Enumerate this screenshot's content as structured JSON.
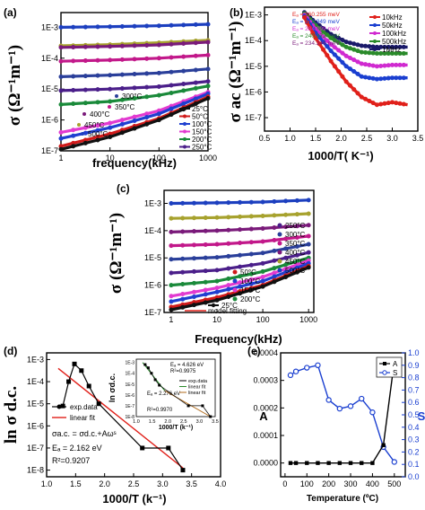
{
  "chart_data": [
    {
      "id": "a",
      "panel_label": "(a)",
      "type": "line",
      "xlabel": "frequency(kHz)",
      "ylabel": "σ (Ω⁻¹m⁻¹)",
      "xscale": "log",
      "yscale": "log",
      "xlim": [
        1,
        1000
      ],
      "ylim": [
        1e-07,
        0.003
      ],
      "xticks": [
        "1",
        "10",
        "100",
        "1000"
      ],
      "yticks": [
        "1E-7",
        "1E-6",
        "1E-5",
        "1E-4",
        "1E-3"
      ],
      "series": [
        {
          "name": "500°C",
          "color": "#1c3fbf",
          "values_log": [
            -3.0,
            -2.98,
            -2.95,
            -2.9
          ]
        },
        {
          "name": "450°C",
          "color": "#a7a22e",
          "values_log": [
            -3.6,
            -3.56,
            -3.5,
            -3.42
          ]
        },
        {
          "name": "400°C",
          "color": "#7a1a7a",
          "values_log": [
            -3.65,
            -3.62,
            -3.57,
            -3.48
          ]
        },
        {
          "name": "350°C",
          "color": "#c2188a",
          "values_log": [
            -4.1,
            -4.06,
            -4.0,
            -3.9
          ]
        },
        {
          "name": "300°C",
          "color": "#2a3f9a",
          "values_log": [
            -4.6,
            -4.55,
            -4.48,
            -4.35
          ]
        },
        {
          "name": "250°C",
          "color": "#4b1f8a",
          "values_log": [
            -5.05,
            -5.0,
            -4.92,
            -4.75
          ]
        },
        {
          "name": "200°C",
          "color": "#1a8a3a",
          "values_log": [
            -5.5,
            -5.4,
            -5.2,
            -4.9
          ]
        },
        {
          "name": "150°C",
          "color": "#e23ad0",
          "values_log": [
            -6.4,
            -6.1,
            -5.7,
            -5.1
          ]
        },
        {
          "name": "100°C",
          "color": "#1f3fd0",
          "values_log": [
            -6.6,
            -6.25,
            -5.8,
            -5.15
          ]
        },
        {
          "name": "50°C",
          "color": "#d01a1a",
          "values_log": [
            -6.85,
            -6.45,
            -5.95,
            -5.25
          ]
        },
        {
          "name": "25°C",
          "color": "#111111",
          "values_log": [
            -6.95,
            -6.55,
            -6.0,
            -5.3
          ]
        }
      ],
      "legend": [
        "25°C",
        "50°C",
        "100°C",
        "150°C",
        "200°C",
        "250°C"
      ],
      "inline_labels": [
        "300°C",
        "350°C",
        "400°C",
        "450°C",
        "500°C"
      ]
    },
    {
      "id": "b",
      "panel_label": "(b)",
      "type": "line",
      "xlabel": "1000/T( K⁻¹)",
      "ylabel": "σ ac (Ω⁻¹m⁻¹)",
      "yscale": "log",
      "xlim": [
        0.5,
        3.5
      ],
      "ylim": [
        3e-08,
        0.002
      ],
      "xticks": [
        "0.5",
        "1.0",
        "1.5",
        "2.0",
        "2.5",
        "3.0",
        "3.5"
      ],
      "yticks": [
        "1E-7",
        "1E-6",
        "1E-5",
        "1E-4",
        "1E-3"
      ],
      "activation": [
        {
          "text": "Eₐ = 360.255 meV",
          "color": "#e0201a"
        },
        {
          "text": "Eₐ = 312.949 meV",
          "color": "#1a3fd0"
        },
        {
          "text": "Eₐ = 284.099 meV",
          "color": "#d02ad0"
        },
        {
          "text": "Eₐ = 240.372 meV",
          "color": "#2a8a2a"
        },
        {
          "text": "Eₐ = 234.246 meV",
          "color": "#7a1a7a"
        }
      ],
      "series": [
        {
          "name": "10kHz",
          "color": "#e0201a",
          "x": [
            1.28,
            1.5,
            1.8,
            2.1,
            2.4,
            2.7,
            3.0,
            3.3
          ],
          "y_log": [
            -3.1,
            -3.9,
            -4.8,
            -5.6,
            -6.2,
            -6.5,
            -6.4,
            -6.5
          ]
        },
        {
          "name": "50kHz",
          "color": "#1a3fd0",
          "x": [
            1.28,
            1.5,
            1.8,
            2.1,
            2.4,
            2.7,
            3.0,
            3.3
          ],
          "y_log": [
            -3.05,
            -3.7,
            -4.4,
            -5.0,
            -5.4,
            -5.5,
            -5.45,
            -5.45
          ]
        },
        {
          "name": "100kHz",
          "color": "#d02ad0",
          "x": [
            1.28,
            1.5,
            1.8,
            2.1,
            2.4,
            2.7,
            3.0,
            3.3
          ],
          "y_log": [
            -3.0,
            -3.55,
            -4.15,
            -4.6,
            -4.9,
            -5.0,
            -4.95,
            -4.95
          ]
        },
        {
          "name": "500kHz",
          "color": "#2a8a2a",
          "x": [
            1.28,
            1.5,
            1.8,
            2.1,
            2.4,
            2.7,
            3.0,
            3.3
          ],
          "y_log": [
            -2.95,
            -3.4,
            -3.9,
            -4.25,
            -4.45,
            -4.5,
            -4.5,
            -4.5
          ]
        },
        {
          "name": "1MHz",
          "color": "#1a1a6a",
          "x": [
            1.28,
            1.5,
            1.8,
            2.1,
            2.4,
            2.7,
            3.0,
            3.3
          ],
          "y_log": [
            -2.9,
            -3.3,
            -3.75,
            -4.05,
            -4.2,
            -4.25,
            -4.25,
            -4.25
          ]
        }
      ]
    },
    {
      "id": "c",
      "panel_label": "(c)",
      "type": "line",
      "xlabel": "Frequency(kHz)",
      "ylabel": "σ (Ω⁻¹m⁻¹)",
      "xscale": "log",
      "yscale": "log",
      "xlim": [
        0.7,
        1300
      ],
      "ylim": [
        1e-07,
        0.003
      ],
      "xticks": [
        "1",
        "10",
        "100",
        "1000"
      ],
      "yticks": [
        "1E-7",
        "1E-6",
        "1E-5",
        "1E-4",
        "1E-3"
      ],
      "series": [
        {
          "name": "500°C",
          "color": "#1c3fbf",
          "values_log": [
            -3.0,
            -2.98,
            -2.95,
            -2.88
          ]
        },
        {
          "name": "450°C",
          "color": "#a7a22e",
          "values_log": [
            -3.55,
            -3.52,
            -3.46,
            -3.38
          ]
        },
        {
          "name": "400°C",
          "color": "#7a1a7a",
          "values_log": [
            -4.05,
            -4.0,
            -3.92,
            -3.8
          ]
        },
        {
          "name": "350°C",
          "color": "#c2188a",
          "values_log": [
            -4.55,
            -4.5,
            -4.4,
            -4.2
          ]
        },
        {
          "name": "300°C",
          "color": "#2a3f9a",
          "values_log": [
            -5.05,
            -4.98,
            -4.82,
            -4.5
          ]
        },
        {
          "name": "250°C",
          "color": "#4b1f8a",
          "values_log": [
            -5.55,
            -5.45,
            -5.2,
            -4.8
          ]
        },
        {
          "name": "200°C",
          "color": "#1a8a3a",
          "values_log": [
            -6.0,
            -5.85,
            -5.5,
            -5.0
          ]
        },
        {
          "name": "150°C",
          "color": "#e23ad0",
          "values_log": [
            -6.4,
            -6.1,
            -5.7,
            -5.1
          ]
        },
        {
          "name": "100°C",
          "color": "#1f3fd0",
          "values_log": [
            -6.6,
            -6.25,
            -5.85,
            -5.2
          ]
        },
        {
          "name": "50°C",
          "color": "#d01a1a",
          "values_log": [
            -6.8,
            -6.45,
            -6.0,
            -5.3
          ]
        },
        {
          "name": "25°C",
          "color": "#111111",
          "values_log": [
            -6.9,
            -6.55,
            -6.05,
            -5.35
          ]
        }
      ],
      "legend_right": [
        "250°C",
        "300°C",
        "350°C",
        "400°C",
        "450°C",
        "500°C"
      ],
      "legend_mid": [
        "50°C",
        "100°C",
        "150°C",
        "200°C"
      ],
      "legend_bottom": [
        "25°C",
        "model fitting"
      ]
    },
    {
      "id": "d",
      "panel_label": "(d)",
      "type": "line",
      "xlabel": "1000/T (k⁻¹)",
      "ylabel": "ln σ d.c.",
      "yscale": "log",
      "xlim": [
        1.0,
        4.0
      ],
      "ylim": [
        5e-09,
        0.002
      ],
      "xticks": [
        "1.0",
        "1.5",
        "2.0",
        "2.5",
        "3.0",
        "3.5",
        "4.0"
      ],
      "yticks": [
        "1E-8",
        "1E-7",
        "1E-6",
        "1E-5",
        "1E-4",
        "1E-3"
      ],
      "series": [
        {
          "name": "exp.data",
          "color": "#000000",
          "x": [
            1.28,
            1.38,
            1.48,
            1.6,
            1.73,
            1.9,
            2.65,
            3.1,
            3.35
          ],
          "y_log": [
            -5.1,
            -4.0,
            -3.2,
            -3.5,
            -4.2,
            -5.0,
            -7.0,
            -7.0,
            -8.0
          ]
        },
        {
          "name": "linear fit",
          "color": "#e0201a",
          "x": [
            1.2,
            3.35
          ],
          "y_log": [
            -3.4,
            -7.9
          ]
        }
      ],
      "legend": [
        "exp.data",
        "linear fit"
      ],
      "equation": "σa.c. = σd.c.+Aωˢ",
      "ea": "Eₐ = 2.162 eV",
      "r2": "R²=0.9207",
      "inset": {
        "ylabel": "ln σd.c.",
        "xlabel": "1000/T (k⁻¹)",
        "xticks": [
          "1.0",
          "1.5",
          "2.0",
          "2.5",
          "3.0",
          "3.5"
        ],
        "yticks": [
          "1E-8",
          "1E-7",
          "1E-6",
          "1E-5",
          "1E-4",
          "1E-3"
        ],
        "xlim": [
          1.0,
          3.5
        ],
        "ylim": [
          1e-08,
          0.002
        ],
        "ea1": "Eₐ = 4.626 eV",
        "r1": "R²=0.9975",
        "ea2": "Eₐ = 2.276 eV",
        "r2": "R²=0.9970",
        "legend": [
          "exp.data",
          "linear fit",
          "linear fit"
        ],
        "data_x": [
          1.28,
          1.38,
          1.48,
          1.6,
          1.73,
          2.65,
          3.1,
          3.35
        ],
        "data_y": [
          -3.2,
          -3.5,
          -4.0,
          -4.6,
          -5.1,
          -7.0,
          -7.0,
          -8.0
        ],
        "fit1_x": [
          1.2,
          1.9
        ],
        "fit1_y": [
          -3.0,
          -5.6
        ],
        "fit2_x": [
          1.9,
          3.35
        ],
        "fit2_y": [
          -5.6,
          -8.0
        ]
      }
    },
    {
      "id": "e",
      "panel_label": "(e)",
      "type": "line",
      "xlabel": "Temperature (ºC)",
      "ylabel_left": "A",
      "ylabel_right": "S",
      "xlim": [
        -20,
        550
      ],
      "ylim_left": [
        -5e-05,
        0.0004
      ],
      "ylim_right": [
        0,
        1.0
      ],
      "xticks": [
        "0",
        "100",
        "200",
        "300",
        "400",
        "500"
      ],
      "yticks_left": [
        "0.0000",
        "0.0001",
        "0.0002",
        "0.0003",
        "0.0004"
      ],
      "yticks_right": [
        "0.0",
        "0.1",
        "0.2",
        "0.3",
        "0.4",
        "0.5",
        "0.6",
        "0.7",
        "0.8",
        "0.9",
        "1.0"
      ],
      "legend": [
        "A",
        "S"
      ],
      "series": [
        {
          "name": "A",
          "color": "#000000",
          "x": [
            25,
            50,
            100,
            150,
            200,
            250,
            300,
            350,
            400,
            450,
            500
          ],
          "y": [
            0,
            0,
            0,
            0,
            0,
            0,
            0,
            0,
            0,
            6.5e-05,
            0.00037
          ]
        },
        {
          "name": "S",
          "color": "#1a3fd0",
          "x": [
            25,
            50,
            100,
            150,
            200,
            250,
            300,
            350,
            400,
            450,
            500
          ],
          "y": [
            0.82,
            0.85,
            0.88,
            0.9,
            0.62,
            0.55,
            0.57,
            0.63,
            0.52,
            0.24,
            0.12
          ]
        }
      ]
    }
  ]
}
